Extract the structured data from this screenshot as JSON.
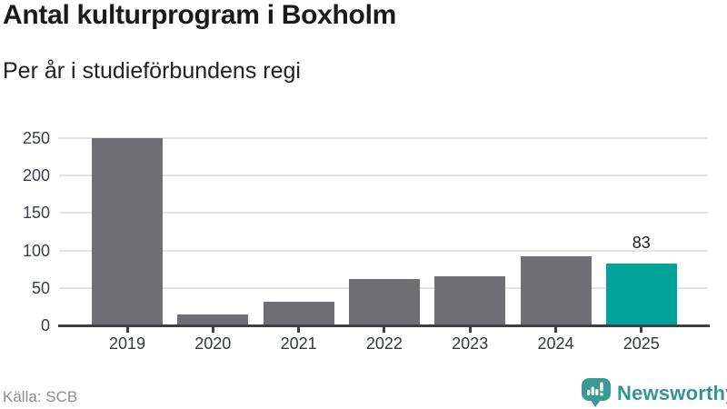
{
  "chart_data": {
    "type": "bar",
    "title": "Antal kulturprogram i Boxholm",
    "subtitle": "Per år i studieförbundens regi",
    "categories": [
      "2019",
      "2020",
      "2021",
      "2022",
      "2023",
      "2024",
      "2025"
    ],
    "values": [
      250,
      14,
      31,
      62,
      66,
      92,
      83
    ],
    "highlight_index": 6,
    "highlight_value_label": "83",
    "bar_color": "#6E6E73",
    "highlight_color": "#00A39A",
    "axis_color": "#3E3E43",
    "grid_color": "#E3E3E3",
    "xlabel": "",
    "ylabel": "",
    "ylim": [
      0,
      250
    ],
    "yticks": [
      0,
      50,
      100,
      150,
      200,
      250
    ],
    "grid": true,
    "legend": "none"
  },
  "footer": {
    "source": "Källa: SCB",
    "brand": "Newsworthy",
    "brand_color": "#35968F"
  }
}
